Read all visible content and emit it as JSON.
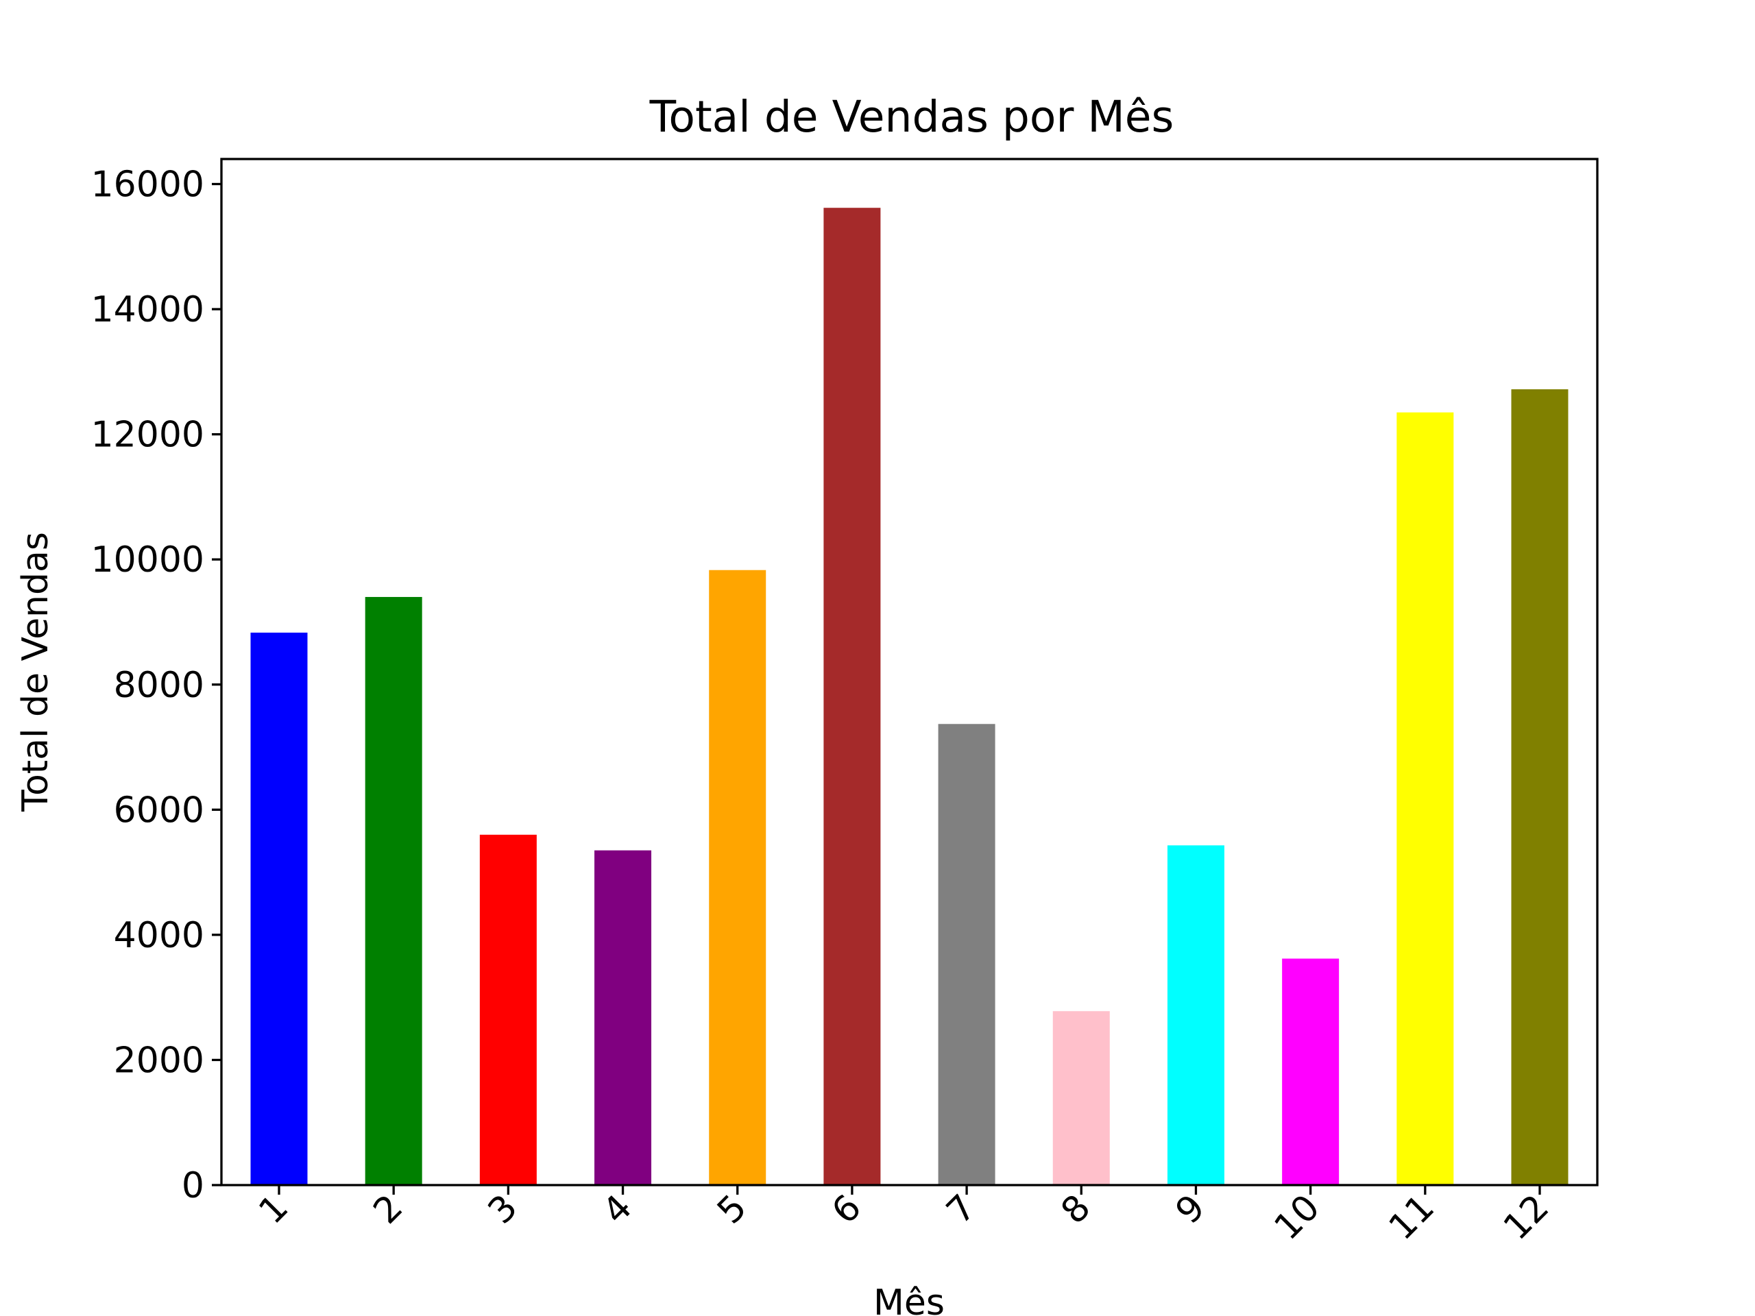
{
  "chart_data": {
    "type": "bar",
    "title": "Total de Vendas por Mês",
    "xlabel": "Mês",
    "ylabel": "Total de Vendas",
    "categories": [
      "1",
      "2",
      "3",
      "4",
      "5",
      "6",
      "7",
      "8",
      "9",
      "10",
      "11",
      "12"
    ],
    "values": [
      8830,
      9400,
      5600,
      5350,
      9830,
      15620,
      7370,
      2780,
      5430,
      3620,
      12350,
      12720
    ],
    "colors": [
      "#0000ff",
      "#008000",
      "#ff0000",
      "#800080",
      "#ffa500",
      "#a52a2a",
      "#808080",
      "#ffc0cb",
      "#00ffff",
      "#ff00ff",
      "#ffff00",
      "#808000"
    ],
    "yticks": [
      0,
      2000,
      4000,
      6000,
      8000,
      10000,
      12000,
      14000,
      16000
    ],
    "ytick_labels": [
      "0",
      "2000",
      "4000",
      "6000",
      "8000",
      "10000",
      "12000",
      "14000",
      "16000"
    ],
    "ylim": [
      0,
      16400
    ],
    "xtick_rotation_deg": 45,
    "grid": false,
    "legend": "none"
  }
}
